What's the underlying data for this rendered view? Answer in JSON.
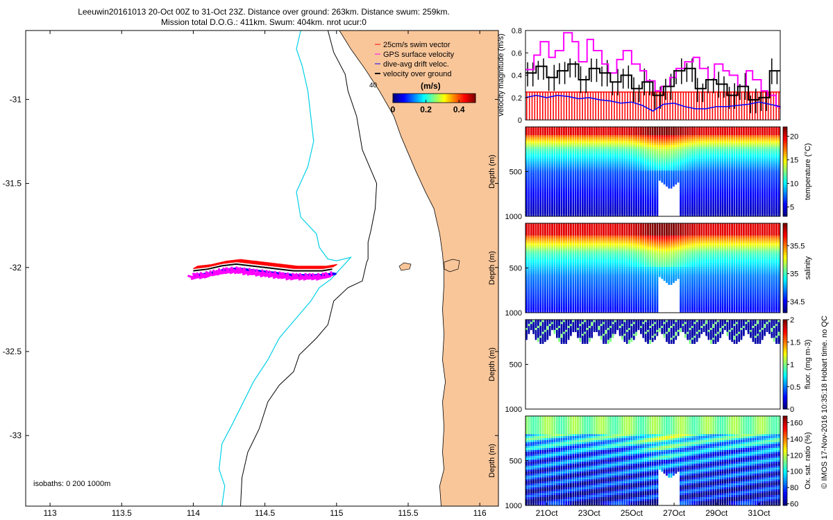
{
  "header": {
    "line1": "Leeuwin20161013 20-Oct 00Z to 31-Oct 23Z. Distance over ground: 263km. Distance swum: 259km.",
    "line2": "Mission total D.O.G.: 411km. Swum: 404km. nrot ucur:0"
  },
  "colors": {
    "land": "#f9c69a",
    "isobath_200": "#000000",
    "isobath_1000": "#00d0e8",
    "swim_vector": "#ff0000",
    "gps_velocity": "#ff00ff",
    "drift_velocity": "#0000ff",
    "ground_velocity": "#000000"
  },
  "chart_data": [
    {
      "type": "scatter",
      "name": "track-map",
      "xlim": [
        112.83,
        116.13
      ],
      "ylim": [
        -33.42,
        -30.59
      ],
      "xticks": [
        113,
        113.5,
        114,
        114.5,
        115,
        115.5,
        116
      ],
      "xtick_labels": [
        "113",
        "113.5",
        "114",
        "114.5",
        "115",
        "115.5",
        "116"
      ],
      "yticks": [
        -31,
        -31.5,
        -32,
        -32.5,
        -33
      ],
      "ytick_labels": [
        "-31",
        "-31.5",
        "-32",
        "-32.5",
        "-33"
      ],
      "legend": {
        "placement": "top-right",
        "entries": [
          "25cm/s swim vector",
          "GPS surface velocity",
          "dive-avg drift veloc.",
          "velocity over ground"
        ]
      },
      "colorbar": {
        "label": "(m/s)",
        "range": [
          0,
          0.5
        ],
        "ticks": [
          0,
          0.2,
          0.4
        ],
        "tick_labels": [
          "0",
          "0.2",
          "0.4"
        ]
      },
      "isobath_note": "isobaths: 0   200   1000m",
      "map_label": "40",
      "track": {
        "lon": [
          114.0,
          114.1,
          114.2,
          114.3,
          114.4,
          114.5,
          114.6,
          114.7,
          114.8,
          114.9,
          114.97
        ],
        "lat": [
          -32.02,
          -32.01,
          -31.99,
          -31.98,
          -31.99,
          -32.0,
          -32.01,
          -32.02,
          -32.02,
          -32.02,
          -32.01
        ]
      },
      "coastline": {
        "lon": [
          115.02,
          115.1,
          115.2,
          115.3,
          115.4,
          115.45,
          115.55,
          115.62,
          115.68,
          115.72,
          115.74,
          115.75,
          115.75,
          115.74,
          115.75,
          115.74,
          115.76,
          115.74,
          115.75,
          115.74,
          115.75,
          115.72,
          115.73
        ],
        "lat": [
          -30.59,
          -30.7,
          -30.82,
          -30.95,
          -31.1,
          -31.22,
          -31.42,
          -31.55,
          -31.65,
          -31.8,
          -31.92,
          -32.02,
          -32.1,
          -32.25,
          -32.4,
          -32.55,
          -32.68,
          -32.8,
          -32.95,
          -33.1,
          -33.2,
          -33.3,
          -33.42
        ]
      },
      "isobath_200": {
        "lon": [
          114.94,
          114.98,
          115.06,
          115.08,
          115.14,
          115.18,
          115.28,
          115.27,
          115.24,
          115.22,
          115.22,
          115.21,
          115.18,
          115.08,
          114.98,
          114.94,
          114.86,
          114.74,
          114.7,
          114.6,
          114.52,
          114.46,
          114.38,
          114.34,
          114.33
        ],
        "lat": [
          -30.59,
          -30.72,
          -30.85,
          -30.95,
          -31.1,
          -31.3,
          -31.5,
          -31.65,
          -31.78,
          -31.85,
          -31.95,
          -31.97,
          -32.08,
          -32.12,
          -32.2,
          -32.34,
          -32.42,
          -32.52,
          -32.62,
          -32.7,
          -32.8,
          -32.96,
          -33.1,
          -33.25,
          -33.42
        ]
      },
      "isobath_1000": {
        "lon": [
          114.75,
          114.72,
          114.76,
          114.8,
          114.82,
          114.84,
          114.8,
          114.72,
          114.75,
          114.86,
          114.88,
          114.94,
          115.0,
          115.1,
          114.96,
          114.88,
          114.82,
          114.7,
          114.6,
          114.52,
          114.42,
          114.35,
          114.28,
          114.2,
          114.18,
          114.22,
          114.2
        ],
        "lat": [
          -30.59,
          -30.7,
          -30.8,
          -30.95,
          -31.1,
          -31.25,
          -31.4,
          -31.55,
          -31.7,
          -31.8,
          -31.88,
          -31.95,
          -31.96,
          -31.94,
          -32.07,
          -32.12,
          -32.2,
          -32.32,
          -32.42,
          -32.55,
          -32.68,
          -32.8,
          -32.92,
          -33.05,
          -33.2,
          -33.3,
          -33.42
        ]
      }
    },
    {
      "type": "line",
      "name": "velocity-magnitude",
      "ylabel": "velocity magnitude (m/s)",
      "ylim": [
        0,
        0.8
      ],
      "yticks": [
        0,
        0.2,
        0.4,
        0.6,
        0.8
      ],
      "ytick_labels": [
        "0",
        "0.2",
        "0.4",
        "0.6",
        "0.8"
      ],
      "xlim": [
        20.0,
        32.0
      ],
      "swim_speed": 0.25,
      "series": [
        {
          "name": "GPS surface velocity",
          "color": "#ff00ff",
          "x": [
            20.0,
            20.4,
            20.7,
            21.1,
            21.4,
            21.8,
            22.2,
            22.5,
            22.9,
            23.2,
            23.6,
            23.9,
            24.3,
            24.6,
            25.0,
            25.4,
            25.7,
            26.1,
            26.4,
            26.8,
            27.1,
            27.5,
            27.9,
            28.2,
            28.6,
            28.9,
            29.3,
            29.6,
            30.0,
            30.4,
            30.7,
            31.1,
            31.4,
            31.8,
            32.0
          ],
          "y": [
            0.45,
            0.58,
            0.7,
            0.56,
            0.62,
            0.78,
            0.7,
            0.52,
            0.72,
            0.62,
            0.5,
            0.42,
            0.54,
            0.62,
            0.5,
            0.44,
            0.35,
            0.26,
            0.3,
            0.38,
            0.46,
            0.52,
            0.56,
            0.46,
            0.36,
            0.5,
            0.44,
            0.4,
            0.3,
            0.44,
            0.36,
            0.26,
            0.22,
            0.12,
            0.1
          ]
        },
        {
          "name": "velocity over ground",
          "color": "#000000",
          "x": [
            20.0,
            20.5,
            21.0,
            21.5,
            22.0,
            22.5,
            23.0,
            23.5,
            24.0,
            24.5,
            25.0,
            25.5,
            26.0,
            26.5,
            27.0,
            27.5,
            28.0,
            28.5,
            29.0,
            29.5,
            30.0,
            30.5,
            31.0,
            31.5,
            32.0
          ],
          "y": [
            0.42,
            0.48,
            0.38,
            0.44,
            0.5,
            0.36,
            0.46,
            0.42,
            0.34,
            0.4,
            0.28,
            0.34,
            0.22,
            0.3,
            0.44,
            0.46,
            0.28,
            0.36,
            0.32,
            0.22,
            0.3,
            0.18,
            0.2,
            0.44,
            0.44
          ]
        },
        {
          "name": "dive-avg drift veloc.",
          "color": "#0000ff",
          "x": [
            20.0,
            20.5,
            21.0,
            21.5,
            22.0,
            22.5,
            23.0,
            23.5,
            24.0,
            24.5,
            25.0,
            25.5,
            26.0,
            26.5,
            27.0,
            27.5,
            28.0,
            28.5,
            29.0,
            29.5,
            30.0,
            30.5,
            31.0,
            31.5,
            32.0
          ],
          "y": [
            0.2,
            0.22,
            0.2,
            0.22,
            0.21,
            0.19,
            0.2,
            0.18,
            0.17,
            0.15,
            0.16,
            0.13,
            0.08,
            0.14,
            0.15,
            0.12,
            0.1,
            0.1,
            0.12,
            0.12,
            0.13,
            0.14,
            0.16,
            0.14,
            0.12
          ]
        }
      ]
    },
    {
      "type": "heatmap",
      "name": "temperature-section",
      "ylabel": "Depth (m)",
      "colorbar_label": "temperature (°C)",
      "ylim": [
        1000,
        0
      ],
      "yticks": [
        500,
        1000
      ],
      "ytick_labels": [
        "500",
        "1000"
      ],
      "crange": [
        3,
        22
      ],
      "cticks": [
        5,
        10,
        15,
        20
      ],
      "ctick_labels": [
        "5",
        "10",
        "15",
        "20"
      ]
    },
    {
      "type": "heatmap",
      "name": "salinity-section",
      "ylabel": "Depth (m)",
      "colorbar_label": "salinity",
      "ylim": [
        1000,
        0
      ],
      "yticks": [
        500,
        1000
      ],
      "ytick_labels": [
        "500",
        "1000"
      ],
      "crange": [
        34.3,
        35.9
      ],
      "cticks": [
        34.5,
        35,
        35.5
      ],
      "ctick_labels": [
        "34.5",
        "35",
        "35.5"
      ]
    },
    {
      "type": "heatmap",
      "name": "fluorescence-section",
      "ylabel": "Depth (m)",
      "colorbar_label": "fluor. (mg m-3)",
      "ylim": [
        1000,
        0
      ],
      "yticks": [
        500,
        1000
      ],
      "ytick_labels": [
        "500",
        "1000"
      ],
      "crange": [
        0,
        2
      ],
      "cticks": [
        0,
        0.5,
        1,
        1.5,
        2
      ],
      "ctick_labels": [
        "0",
        "0.5",
        "1",
        "1.5",
        "2"
      ]
    },
    {
      "type": "heatmap",
      "name": "oxygen-section",
      "ylabel": "Depth (m)",
      "colorbar_label": "Ox. sat. ratio (%)",
      "ylim": [
        1000,
        0
      ],
      "yticks": [
        500,
        1000
      ],
      "ytick_labels": [
        "500",
        "1000"
      ],
      "crange": [
        58,
        168
      ],
      "cticks": [
        60,
        80,
        100,
        120,
        140,
        160
      ],
      "ctick_labels": [
        "60",
        "80",
        "100",
        "120",
        "140",
        "160"
      ],
      "xticks": [
        21,
        23,
        25,
        27,
        29,
        31
      ],
      "xtick_labels": [
        "21Oct",
        "23Oct",
        "25Oct",
        "27Oct",
        "29Oct",
        "31Oct"
      ]
    }
  ],
  "footer": {
    "stamp": "© IMOS 17-Nov-2016 10:35:18 Hobart time. no QC"
  }
}
